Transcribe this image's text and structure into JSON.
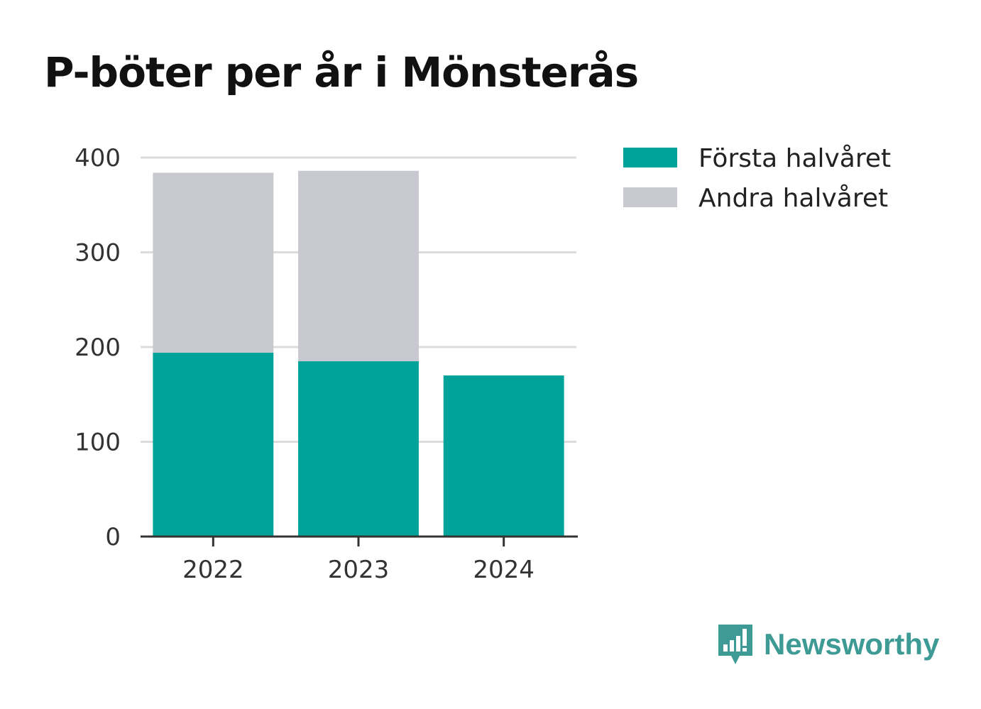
{
  "chart_data": {
    "type": "bar",
    "stacked": true,
    "title": "P-böter per år i Mönsterås",
    "xlabel": "",
    "ylabel": "",
    "categories": [
      "2022",
      "2023",
      "2024"
    ],
    "series": [
      {
        "name": "Första halvåret",
        "values": [
          194,
          185,
          170
        ],
        "color": "#00a39a"
      },
      {
        "name": "Andra halvåret",
        "values": [
          190,
          201,
          0
        ],
        "color": "#c8c8d0"
      }
    ],
    "ylim": [
      0,
      400
    ],
    "yticks": [
      0,
      100,
      200,
      300,
      400
    ],
    "grid": true,
    "legend": "top-right"
  },
  "brand": {
    "name": "Newsworthy",
    "color": "#3d9a94",
    "icon": "newsworthy-logo-icon"
  }
}
